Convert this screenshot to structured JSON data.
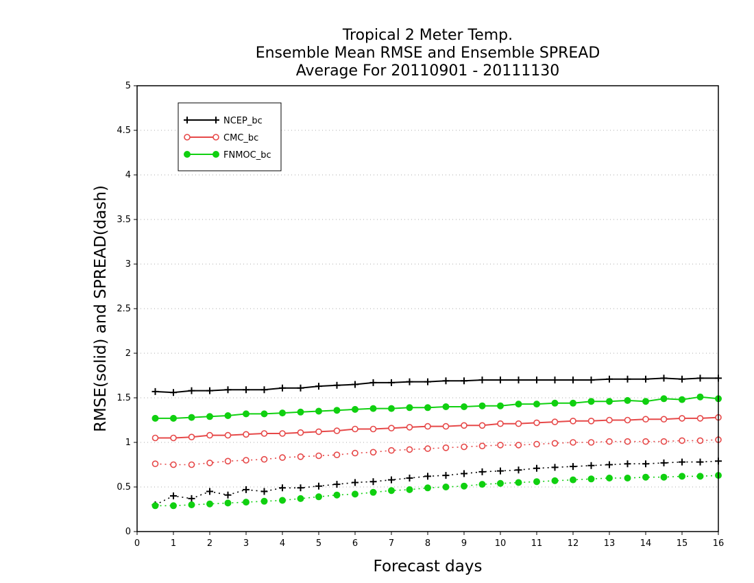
{
  "chart_data": {
    "type": "line",
    "title_lines": [
      "Tropical 2 Meter Temp.",
      "Ensemble Mean RMSE and Ensemble SPREAD",
      "Average For 20110901 - 20111130"
    ],
    "xlabel": "Forecast days",
    "ylabel": "RMSE(solid) and SPREAD(dash)",
    "xlim": [
      0,
      16
    ],
    "ylim": [
      0,
      5
    ],
    "xticks": [
      "0",
      "1",
      "2",
      "3",
      "4",
      "5",
      "6",
      "7",
      "8",
      "9",
      "10",
      "11",
      "12",
      "13",
      "14",
      "15",
      "16"
    ],
    "yticks": [
      "0",
      "0.5",
      "1",
      "1.5",
      "2",
      "2.5",
      "3",
      "3.5",
      "4",
      "4.5",
      "5"
    ],
    "grid": true,
    "legend_position": "top-left",
    "x": [
      0.5,
      1,
      1.5,
      2,
      2.5,
      3,
      3.5,
      4,
      4.5,
      5,
      5.5,
      6,
      6.5,
      7,
      7.5,
      8,
      8.5,
      9,
      9.5,
      10,
      10.5,
      11,
      11.5,
      12,
      12.5,
      13,
      13.5,
      14,
      14.5,
      15,
      15.5,
      16
    ],
    "series": [
      {
        "name": "NCEP_bc",
        "color": "#000000",
        "marker": "plus",
        "rmse": [
          1.57,
          1.56,
          1.58,
          1.58,
          1.59,
          1.59,
          1.59,
          1.61,
          1.61,
          1.63,
          1.64,
          1.65,
          1.67,
          1.67,
          1.68,
          1.68,
          1.69,
          1.69,
          1.7,
          1.7,
          1.7,
          1.7,
          1.7,
          1.7,
          1.7,
          1.71,
          1.71,
          1.71,
          1.72,
          1.71,
          1.72,
          1.72
        ],
        "spread": [
          0.3,
          0.4,
          0.37,
          0.45,
          0.41,
          0.47,
          0.45,
          0.49,
          0.49,
          0.51,
          0.53,
          0.55,
          0.56,
          0.58,
          0.6,
          0.62,
          0.63,
          0.65,
          0.67,
          0.68,
          0.69,
          0.71,
          0.72,
          0.73,
          0.74,
          0.75,
          0.76,
          0.76,
          0.77,
          0.78,
          0.78,
          0.79
        ]
      },
      {
        "name": "CMC_bc",
        "color": "#e64848",
        "marker": "open-circle",
        "rmse": [
          1.05,
          1.05,
          1.06,
          1.08,
          1.08,
          1.09,
          1.1,
          1.1,
          1.11,
          1.12,
          1.13,
          1.15,
          1.15,
          1.16,
          1.17,
          1.18,
          1.18,
          1.19,
          1.19,
          1.21,
          1.21,
          1.22,
          1.23,
          1.24,
          1.24,
          1.25,
          1.25,
          1.26,
          1.26,
          1.27,
          1.27,
          1.28
        ],
        "spread": [
          0.76,
          0.75,
          0.75,
          0.77,
          0.79,
          0.8,
          0.81,
          0.83,
          0.84,
          0.85,
          0.86,
          0.88,
          0.89,
          0.91,
          0.92,
          0.93,
          0.94,
          0.95,
          0.96,
          0.97,
          0.97,
          0.98,
          0.99,
          1.0,
          1.0,
          1.01,
          1.01,
          1.01,
          1.01,
          1.02,
          1.02,
          1.03
        ]
      },
      {
        "name": "FNMOC_bc",
        "color": "#10d010",
        "marker": "filled-circle",
        "rmse": [
          1.27,
          1.27,
          1.28,
          1.29,
          1.3,
          1.32,
          1.32,
          1.33,
          1.34,
          1.35,
          1.36,
          1.37,
          1.38,
          1.38,
          1.39,
          1.39,
          1.4,
          1.4,
          1.41,
          1.41,
          1.43,
          1.43,
          1.44,
          1.44,
          1.46,
          1.46,
          1.47,
          1.46,
          1.49,
          1.48,
          1.51,
          1.49
        ],
        "spread": [
          0.29,
          0.29,
          0.3,
          0.31,
          0.32,
          0.33,
          0.34,
          0.35,
          0.37,
          0.39,
          0.41,
          0.42,
          0.44,
          0.46,
          0.47,
          0.49,
          0.5,
          0.51,
          0.53,
          0.54,
          0.55,
          0.56,
          0.57,
          0.58,
          0.59,
          0.6,
          0.6,
          0.61,
          0.61,
          0.62,
          0.62,
          0.63
        ]
      }
    ]
  }
}
